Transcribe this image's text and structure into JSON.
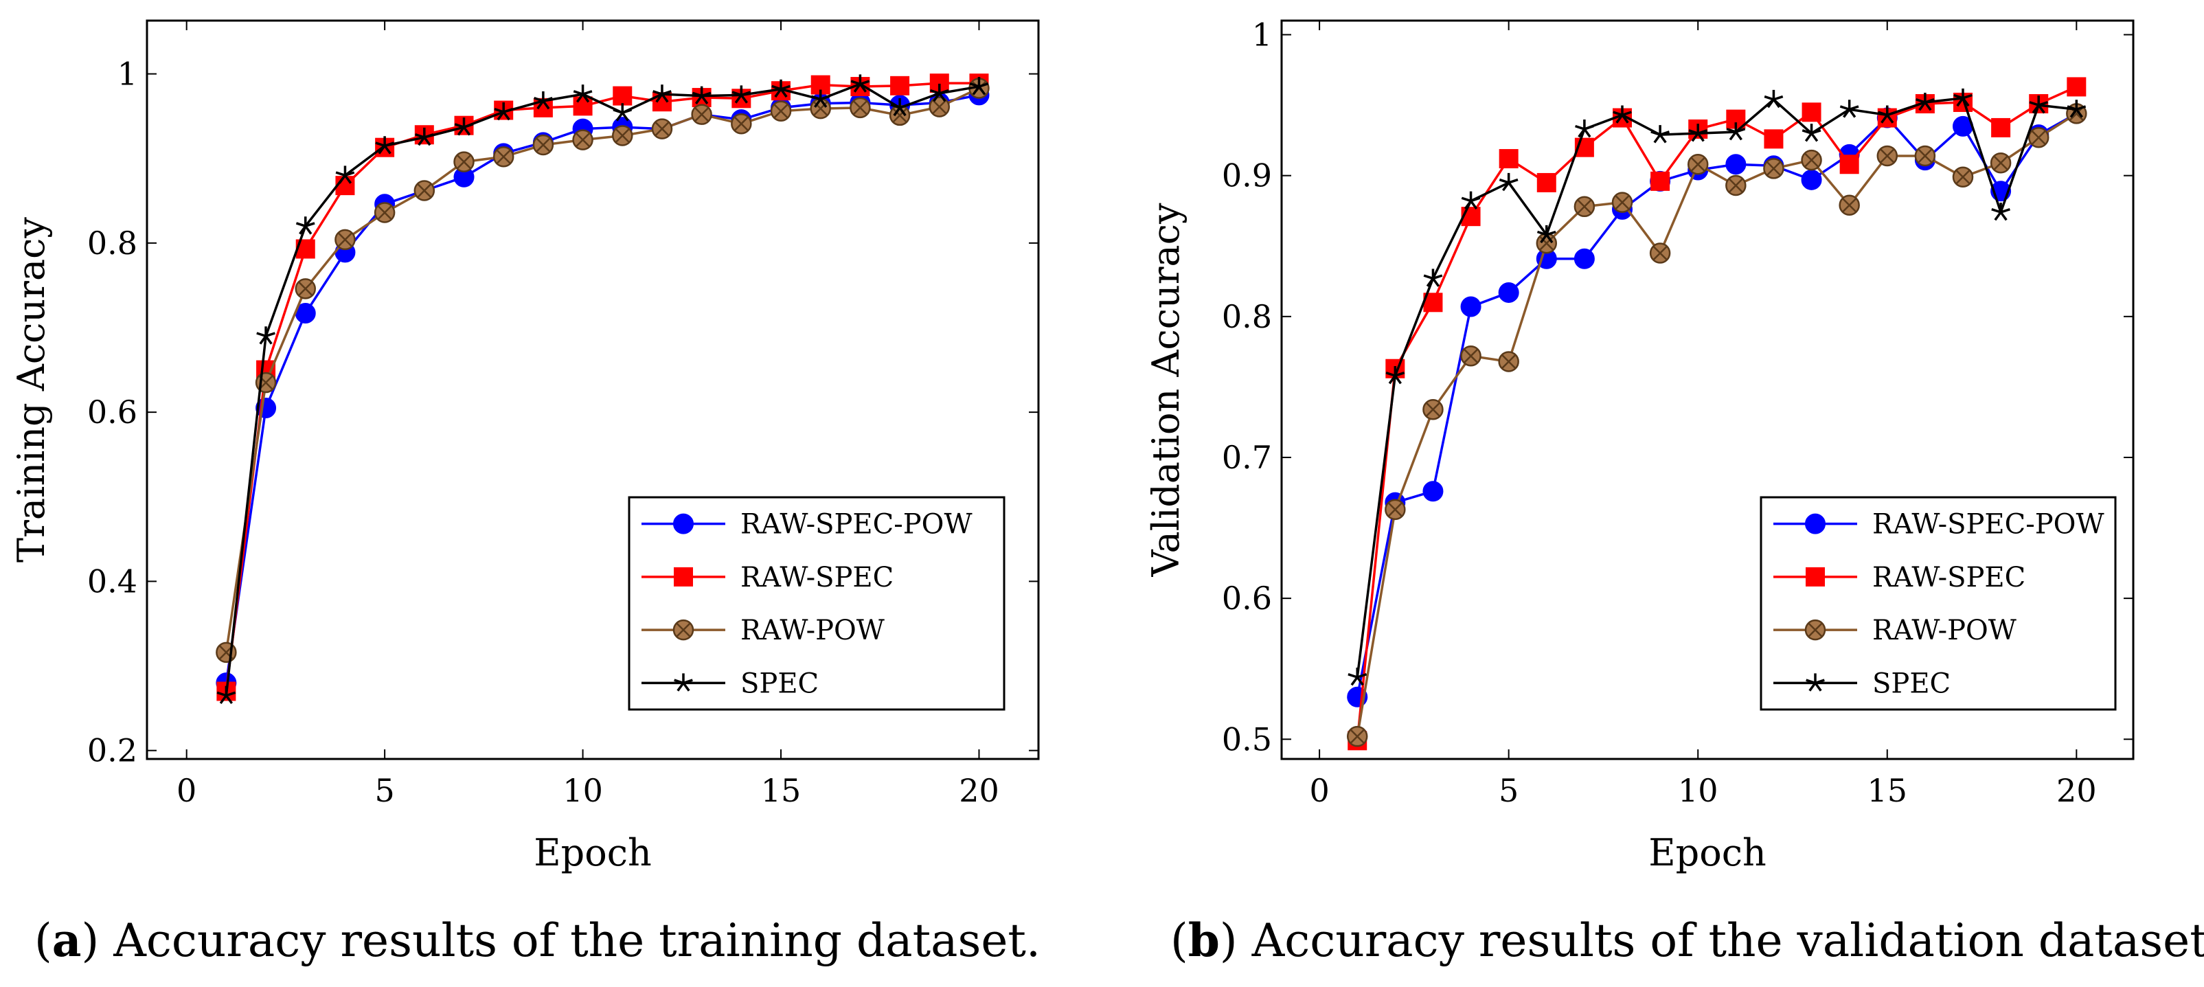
{
  "chart_data": [
    {
      "type": "line",
      "xlabel": "Epoch",
      "ylabel": "Training Accuracy",
      "xlim": [
        -1,
        21.5
      ],
      "ylim": [
        0.19,
        1.063
      ],
      "xticks": [
        0,
        5,
        10,
        15,
        20
      ],
      "yticks": [
        0.2,
        0.4,
        0.6,
        0.8,
        1
      ],
      "ytick_labels": [
        "0.2",
        "0.4",
        "0.6",
        "0.8",
        "1"
      ],
      "legend_position": "bottom-right",
      "x": [
        1,
        2,
        3,
        4,
        5,
        6,
        7,
        8,
        9,
        10,
        11,
        12,
        13,
        14,
        15,
        16,
        17,
        18,
        19,
        20
      ],
      "series": [
        {
          "name": "RAW-SPEC-POW",
          "color": "#0000ff",
          "marker": "circle",
          "values": [
            0.28,
            0.605,
            0.717,
            0.789,
            0.846,
            0.862,
            0.878,
            0.906,
            0.919,
            0.935,
            0.937,
            0.935,
            0.952,
            0.946,
            0.96,
            0.965,
            0.966,
            0.963,
            0.966,
            0.975
          ]
        },
        {
          "name": "RAW-SPEC",
          "color": "#ff0000",
          "marker": "square",
          "values": [
            0.27,
            0.65,
            0.793,
            0.868,
            0.913,
            0.928,
            0.939,
            0.957,
            0.96,
            0.962,
            0.974,
            0.967,
            0.972,
            0.971,
            0.98,
            0.987,
            0.985,
            0.986,
            0.989,
            0.989
          ]
        },
        {
          "name": "RAW-POW",
          "color": "#8b5a2b",
          "marker": "circle-x",
          "values": [
            0.316,
            0.635,
            0.746,
            0.804,
            0.836,
            0.862,
            0.896,
            0.902,
            0.916,
            0.922,
            0.927,
            0.935,
            0.952,
            0.941,
            0.956,
            0.959,
            0.96,
            0.951,
            0.961,
            0.983
          ]
        },
        {
          "name": "SPEC",
          "color": "#000000",
          "marker": "star",
          "values": [
            0.265,
            0.69,
            0.82,
            0.88,
            0.915,
            0.925,
            0.937,
            0.955,
            0.968,
            0.976,
            0.954,
            0.976,
            0.974,
            0.975,
            0.982,
            0.97,
            0.988,
            0.96,
            0.977,
            0.985
          ]
        }
      ]
    },
    {
      "type": "line",
      "xlabel": "Epoch",
      "ylabel": "Validation Accuracy",
      "xlim": [
        -1,
        21.5
      ],
      "ylim": [
        0.486,
        1.01
      ],
      "xticks": [
        0,
        5,
        10,
        15,
        20
      ],
      "yticks": [
        0.5,
        0.6,
        0.7,
        0.8,
        0.9,
        1
      ],
      "ytick_labels": [
        "0.5",
        "0.6",
        "0.7",
        "0.8",
        "0.9",
        "1"
      ],
      "legend_position": "bottom-right",
      "x": [
        1,
        2,
        3,
        4,
        5,
        6,
        7,
        8,
        9,
        10,
        11,
        12,
        13,
        14,
        15,
        16,
        17,
        18,
        19,
        20
      ],
      "series": [
        {
          "name": "RAW-SPEC-POW",
          "color": "#0000ff",
          "marker": "circle",
          "values": [
            0.53,
            0.668,
            0.676,
            0.807,
            0.817,
            0.841,
            0.841,
            0.876,
            0.896,
            0.904,
            0.908,
            0.907,
            0.897,
            0.915,
            0.941,
            0.911,
            0.935,
            0.889,
            0.929,
            0.944
          ]
        },
        {
          "name": "RAW-SPEC",
          "color": "#ff0000",
          "marker": "square",
          "values": [
            0.499,
            0.763,
            0.81,
            0.871,
            0.912,
            0.895,
            0.92,
            0.941,
            0.896,
            0.933,
            0.94,
            0.926,
            0.945,
            0.908,
            0.941,
            0.951,
            0.952,
            0.934,
            0.951,
            0.963
          ]
        },
        {
          "name": "RAW-POW",
          "color": "#8b5a2b",
          "marker": "circle-x",
          "values": [
            0.502,
            0.663,
            0.734,
            0.772,
            0.768,
            0.852,
            0.878,
            0.881,
            0.845,
            0.908,
            0.893,
            0.905,
            0.911,
            0.879,
            0.914,
            0.914,
            0.899,
            0.909,
            0.927,
            0.944
          ]
        },
        {
          "name": "SPEC",
          "color": "#000000",
          "marker": "star",
          "values": [
            0.544,
            0.758,
            0.827,
            0.882,
            0.895,
            0.858,
            0.933,
            0.943,
            0.929,
            0.93,
            0.931,
            0.954,
            0.93,
            0.947,
            0.943,
            0.952,
            0.955,
            0.874,
            0.95,
            0.947
          ]
        }
      ]
    }
  ],
  "captions": [
    {
      "letter": "a",
      "text": " Accuracy results of the training dataset."
    },
    {
      "letter": "b",
      "text": " Accuracy results of the validation dataset."
    }
  ]
}
